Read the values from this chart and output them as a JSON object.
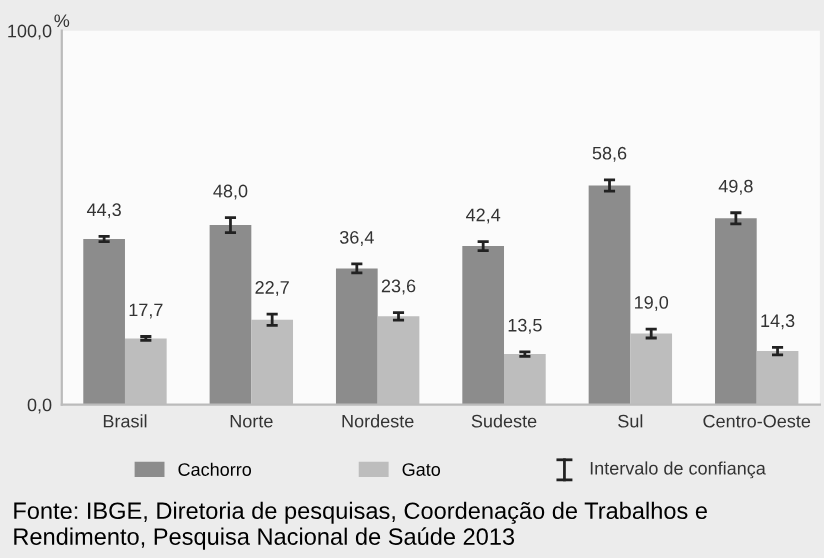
{
  "chart_data": {
    "type": "bar",
    "ylabel": "%",
    "categories": [
      "Brasil",
      "Norte",
      "Nordeste",
      "Sudeste",
      "Sul",
      "Centro-Oeste"
    ],
    "series": [
      {
        "name": "Cachorro",
        "color": "#8c8c8c",
        "values": [
          44.3,
          48.0,
          36.4,
          42.4,
          58.6,
          49.8
        ],
        "errors": [
          0.7,
          2.0,
          1.2,
          1.2,
          1.5,
          1.5
        ],
        "value_labels": [
          "44,3",
          "48,0",
          "36,4",
          "42,4",
          "58,6",
          "49,8"
        ]
      },
      {
        "name": "Gato",
        "color": "#bdbdbd",
        "values": [
          17.7,
          22.7,
          23.6,
          13.5,
          19.0,
          14.3
        ],
        "errors": [
          0.5,
          1.5,
          1.0,
          0.6,
          1.2,
          1.0
        ],
        "value_labels": [
          "17,7",
          "22,7",
          "23,6",
          "13,5",
          "19,0",
          "14,3"
        ]
      }
    ],
    "ylim": [
      0,
      100
    ],
    "yticks": [
      {
        "value": 0,
        "label": "0,0"
      },
      {
        "value": 100,
        "label": "100,0"
      }
    ],
    "grid": false,
    "legend": "bottom",
    "annotations": [
      "Intervalo de confiança",
      "Fonte: IBGE, Diretoria de pesquisas, Coordenação de Trabalhos e Rendimento, Pesquisa Nacional de Saúde 2013"
    ]
  }
}
